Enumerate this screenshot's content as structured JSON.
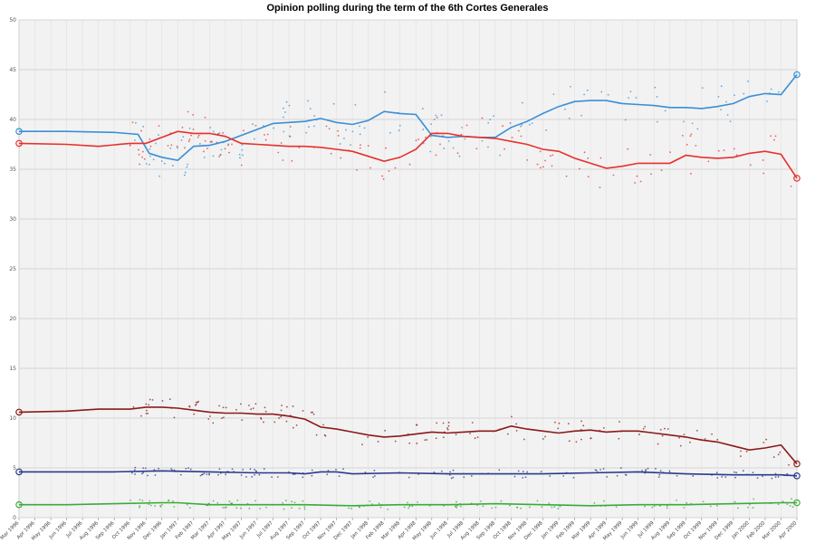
{
  "chart_data": {
    "type": "line",
    "title": "Opinion polling during the term of the 6th Cortes Generales",
    "xlabel": "",
    "ylabel": "",
    "ylim": [
      0,
      50
    ],
    "yticks": [
      0,
      5,
      10,
      15,
      20,
      25,
      30,
      35,
      40,
      45,
      50
    ],
    "xlim": [
      0,
      49
    ],
    "x_tick_labels": [
      "Mar 1996",
      "Apr 1996",
      "May 1996",
      "Jun 1996",
      "Jul 1996",
      "Aug 1996",
      "Sep 1996",
      "Oct 1996",
      "Nov 1996",
      "Dec 1996",
      "Jan 1997",
      "Feb 1997",
      "Mar 1997",
      "Apr 1997",
      "May 1997",
      "Jun 1997",
      "Jul 1997",
      "Aug 1997",
      "Sep 1997",
      "Oct 1997",
      "Nov 1997",
      "Dec 1997",
      "Jan 1998",
      "Feb 1998",
      "Mar 1998",
      "Apr 1998",
      "May 1998",
      "Jun 1998",
      "Jul 1998",
      "Aug 1998",
      "Sep 1998",
      "Oct 1998",
      "Nov 1998",
      "Dec 1998",
      "Jan 1999",
      "Feb 1999",
      "Mar 1999",
      "Apr 1999",
      "May 1999",
      "Jun 1999",
      "Jul 1999",
      "Aug 1999",
      "Sep 1999",
      "Oct 1999",
      "Nov 1999",
      "Dec 1999",
      "Jan 2000",
      "Feb 2000",
      "Mar 2000",
      "Apr 2000"
    ],
    "grid": true,
    "x_unit": "months since Mar 1996",
    "series": [
      {
        "color": "#3a8fd6",
        "values": [
          [
            0,
            38.8
          ],
          [
            3,
            38.8
          ],
          [
            6,
            38.7
          ],
          [
            7.5,
            38.5
          ],
          [
            8.2,
            36.6
          ],
          [
            9,
            36.2
          ],
          [
            10,
            35.9
          ],
          [
            11,
            37.3
          ],
          [
            12,
            37.4
          ],
          [
            13,
            37.8
          ],
          [
            14,
            38.4
          ],
          [
            15,
            39.0
          ],
          [
            16,
            39.6
          ],
          [
            17,
            39.7
          ],
          [
            18,
            39.8
          ],
          [
            19,
            40.1
          ],
          [
            20,
            39.7
          ],
          [
            21,
            39.5
          ],
          [
            22,
            39.9
          ],
          [
            23,
            40.8
          ],
          [
            24,
            40.6
          ],
          [
            25,
            40.5
          ],
          [
            26,
            38.4
          ],
          [
            27,
            38.2
          ],
          [
            28,
            38.3
          ],
          [
            29,
            38.2
          ],
          [
            30,
            38.2
          ],
          [
            31,
            39.2
          ],
          [
            32,
            39.8
          ],
          [
            33,
            40.6
          ],
          [
            34,
            41.3
          ],
          [
            35,
            41.8
          ],
          [
            36,
            41.9
          ],
          [
            37,
            41.9
          ],
          [
            38,
            41.6
          ],
          [
            39,
            41.5
          ],
          [
            40,
            41.4
          ],
          [
            41,
            41.2
          ],
          [
            42,
            41.2
          ],
          [
            43,
            41.1
          ],
          [
            44,
            41.3
          ],
          [
            45,
            41.6
          ],
          [
            46,
            42.3
          ],
          [
            47,
            42.6
          ],
          [
            48,
            42.5
          ],
          [
            49,
            44.5
          ]
        ],
        "end_value": 44.5
      },
      {
        "color": "#e8302c",
        "values": [
          [
            0,
            37.6
          ],
          [
            3,
            37.5
          ],
          [
            5,
            37.3
          ],
          [
            7,
            37.6
          ],
          [
            8,
            37.6
          ],
          [
            9,
            38.2
          ],
          [
            10,
            38.8
          ],
          [
            11,
            38.6
          ],
          [
            12,
            38.6
          ],
          [
            13,
            38.3
          ],
          [
            14,
            37.6
          ],
          [
            15,
            37.5
          ],
          [
            16,
            37.4
          ],
          [
            17,
            37.3
          ],
          [
            18,
            37.3
          ],
          [
            19,
            37.2
          ],
          [
            20,
            37.0
          ],
          [
            21,
            36.8
          ],
          [
            22,
            36.3
          ],
          [
            23,
            35.8
          ],
          [
            24,
            36.2
          ],
          [
            25,
            37.0
          ],
          [
            26,
            38.6
          ],
          [
            27,
            38.6
          ],
          [
            28,
            38.3
          ],
          [
            29,
            38.2
          ],
          [
            30,
            38.1
          ],
          [
            31,
            37.8
          ],
          [
            32,
            37.5
          ],
          [
            33,
            37.0
          ],
          [
            34,
            36.8
          ],
          [
            35,
            36.1
          ],
          [
            36,
            35.6
          ],
          [
            37,
            35.1
          ],
          [
            38,
            35.3
          ],
          [
            39,
            35.6
          ],
          [
            40,
            35.6
          ],
          [
            41,
            35.6
          ],
          [
            42,
            36.4
          ],
          [
            43,
            36.2
          ],
          [
            44,
            36.1
          ],
          [
            45,
            36.2
          ],
          [
            46,
            36.6
          ],
          [
            47,
            36.8
          ],
          [
            48,
            36.5
          ],
          [
            49,
            34.1
          ]
        ],
        "end_value": 34.1
      },
      {
        "color": "#8b1a1a",
        "values": [
          [
            0,
            10.6
          ],
          [
            3,
            10.7
          ],
          [
            5,
            10.9
          ],
          [
            7,
            10.9
          ],
          [
            8,
            11.1
          ],
          [
            9,
            11.1
          ],
          [
            10,
            11.0
          ],
          [
            11,
            10.8
          ],
          [
            12,
            10.6
          ],
          [
            13,
            10.5
          ],
          [
            14,
            10.5
          ],
          [
            15,
            10.4
          ],
          [
            16,
            10.4
          ],
          [
            17,
            10.2
          ],
          [
            18,
            9.9
          ],
          [
            19,
            9.1
          ],
          [
            20,
            8.9
          ],
          [
            21,
            8.6
          ],
          [
            22,
            8.3
          ],
          [
            23,
            8.1
          ],
          [
            24,
            8.2
          ],
          [
            25,
            8.4
          ],
          [
            26,
            8.6
          ],
          [
            27,
            8.5
          ],
          [
            28,
            8.6
          ],
          [
            29,
            8.7
          ],
          [
            30,
            8.7
          ],
          [
            31,
            9.2
          ],
          [
            32,
            8.9
          ],
          [
            33,
            8.7
          ],
          [
            34,
            8.5
          ],
          [
            35,
            8.7
          ],
          [
            36,
            8.8
          ],
          [
            37,
            8.6
          ],
          [
            38,
            8.7
          ],
          [
            39,
            8.7
          ],
          [
            40,
            8.5
          ],
          [
            41,
            8.3
          ],
          [
            42,
            8.1
          ],
          [
            43,
            7.8
          ],
          [
            44,
            7.6
          ],
          [
            45,
            7.2
          ],
          [
            46,
            6.8
          ],
          [
            47,
            7.0
          ],
          [
            48,
            7.3
          ],
          [
            49,
            5.4
          ]
        ],
        "end_value": 5.4
      },
      {
        "color": "#2a3a8c",
        "values": [
          [
            0,
            4.6
          ],
          [
            3,
            4.6
          ],
          [
            6,
            4.6
          ],
          [
            9,
            4.7
          ],
          [
            12,
            4.6
          ],
          [
            15,
            4.5
          ],
          [
            17,
            4.5
          ],
          [
            18,
            4.4
          ],
          [
            19,
            4.6
          ],
          [
            20,
            4.6
          ],
          [
            21,
            4.4
          ],
          [
            24,
            4.5
          ],
          [
            27,
            4.4
          ],
          [
            30,
            4.4
          ],
          [
            33,
            4.4
          ],
          [
            36,
            4.5
          ],
          [
            39,
            4.6
          ],
          [
            42,
            4.4
          ],
          [
            45,
            4.3
          ],
          [
            47,
            4.3
          ],
          [
            48,
            4.3
          ],
          [
            49,
            4.2
          ]
        ],
        "end_value": 4.2
      },
      {
        "color": "#3aaa3a",
        "values": [
          [
            0,
            1.3
          ],
          [
            3,
            1.3
          ],
          [
            6,
            1.4
          ],
          [
            9,
            1.5
          ],
          [
            10,
            1.5
          ],
          [
            12,
            1.3
          ],
          [
            15,
            1.3
          ],
          [
            18,
            1.3
          ],
          [
            21,
            1.2
          ],
          [
            24,
            1.3
          ],
          [
            27,
            1.3
          ],
          [
            30,
            1.4
          ],
          [
            33,
            1.3
          ],
          [
            36,
            1.2
          ],
          [
            39,
            1.3
          ],
          [
            42,
            1.3
          ],
          [
            45,
            1.4
          ],
          [
            48,
            1.5
          ],
          [
            49,
            1.5
          ]
        ],
        "end_value": 1.5
      }
    ]
  }
}
